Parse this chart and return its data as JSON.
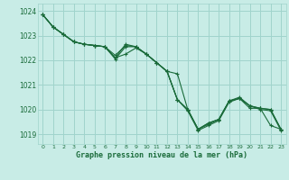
{
  "background_color": "#c8ece6",
  "grid_color": "#a0d4cc",
  "line_color": "#1a6b3a",
  "title": "Graphe pression niveau de la mer (hPa)",
  "xlim": [
    -0.5,
    23.5
  ],
  "ylim": [
    1018.6,
    1024.3
  ],
  "yticks": [
    1019,
    1020,
    1021,
    1022,
    1023,
    1024
  ],
  "xticks": [
    0,
    1,
    2,
    3,
    4,
    5,
    6,
    7,
    8,
    9,
    10,
    11,
    12,
    13,
    14,
    15,
    16,
    17,
    18,
    19,
    20,
    21,
    22,
    23
  ],
  "series": [
    [
      1023.85,
      1023.35,
      1023.05,
      1022.75,
      1022.65,
      1022.6,
      1022.55,
      1022.05,
      1022.55,
      1022.55,
      1022.25,
      1021.9,
      1021.55,
      1021.45,
      1020.0,
      1019.2,
      1019.45,
      1019.6,
      1020.35,
      1020.45,
      1020.05,
      1020.05,
      1019.35,
      1019.2
    ],
    [
      1023.85,
      1023.35,
      1023.05,
      1022.75,
      1022.65,
      1022.6,
      1022.55,
      1022.1,
      1022.65,
      1022.55,
      1022.25,
      1021.9,
      1021.55,
      1020.4,
      1020.0,
      1019.2,
      1019.45,
      1019.6,
      1020.35,
      1020.5,
      1020.15,
      1020.05,
      1020.0,
      1019.2
    ],
    [
      1023.85,
      1023.35,
      1023.05,
      1022.75,
      1022.65,
      1022.6,
      1022.55,
      1022.2,
      1022.6,
      1022.55,
      1022.25,
      1021.9,
      1021.55,
      1020.4,
      1020.0,
      1019.2,
      1019.4,
      1019.6,
      1020.35,
      1020.45,
      1020.15,
      1020.05,
      1020.0,
      1019.2
    ],
    [
      1023.85,
      1023.35,
      1023.05,
      1022.75,
      1022.65,
      1022.6,
      1022.55,
      1022.1,
      1022.25,
      1022.5,
      1022.25,
      1021.9,
      1021.55,
      1020.4,
      1019.95,
      1019.15,
      1019.35,
      1019.55,
      1020.3,
      1020.45,
      1020.15,
      1020.0,
      1019.95,
      1019.15
    ]
  ]
}
